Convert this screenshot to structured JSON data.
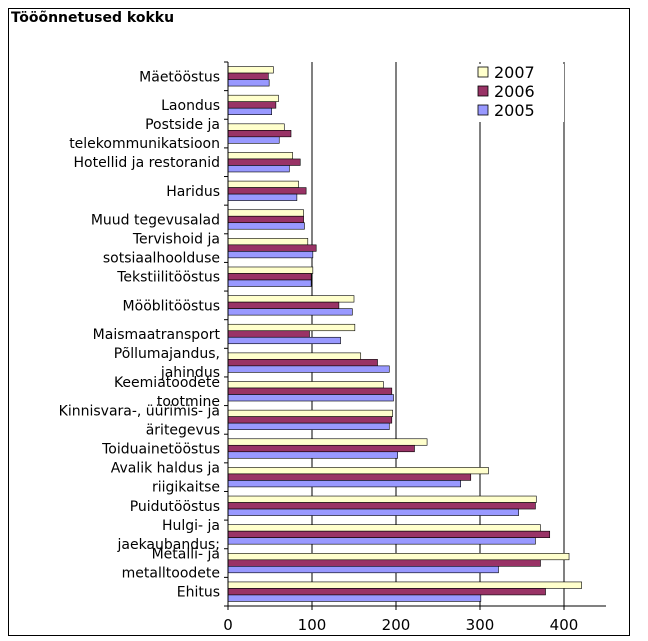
{
  "chart_data": {
    "type": "bar",
    "orientation": "horizontal",
    "title": "Tööõnnetused kokku",
    "xlim": [
      0,
      450
    ],
    "xticks": [
      0,
      100,
      200,
      300,
      400
    ],
    "grid": true,
    "legend_position": "top-right",
    "categories": [
      [
        "Mäetööstus"
      ],
      [
        "Laondus"
      ],
      [
        "Postside ja",
        "telekommunikatsioon"
      ],
      [
        "Hotellid ja restoranid"
      ],
      [
        "Haridus"
      ],
      [
        "Muud tegevusalad"
      ],
      [
        "Tervishoid ja",
        "sotsiaalhoolduse"
      ],
      [
        "Tekstiilitööstus"
      ],
      [
        "Mööblitööstus"
      ],
      [
        "Maismaatransport"
      ],
      [
        "Põllumajandus,",
        "jahindus"
      ],
      [
        "Keemiatoodete",
        "tootmine"
      ],
      [
        "Kinnisvara-, üürimis- ja",
        "äritegevus"
      ],
      [
        "Toiduainetööstus"
      ],
      [
        "Avalik haldus ja",
        "riigikaitse"
      ],
      [
        "Puidutööstus"
      ],
      [
        "Hulgi- ja",
        "jaekaubandus;"
      ],
      [
        "Metalli- ja",
        "metalltoodete"
      ],
      [
        "Ehitus"
      ]
    ],
    "series": [
      {
        "name": "2007",
        "color": "#FFFFCC",
        "values": [
          54,
          60,
          67,
          77,
          84,
          90,
          95,
          101,
          150,
          151,
          158,
          185,
          196,
          237,
          310,
          367,
          372,
          406,
          421
        ]
      },
      {
        "name": "2006",
        "color": "#993366",
        "values": [
          48,
          57,
          75,
          86,
          93,
          90,
          105,
          99,
          132,
          97,
          178,
          195,
          195,
          222,
          289,
          366,
          383,
          372,
          378
        ]
      },
      {
        "name": "2005",
        "color": "#9999FF",
        "values": [
          49,
          52,
          61,
          73,
          82,
          91,
          101,
          99,
          148,
          134,
          192,
          197,
          192,
          202,
          277,
          346,
          366,
          322,
          301
        ]
      }
    ]
  }
}
